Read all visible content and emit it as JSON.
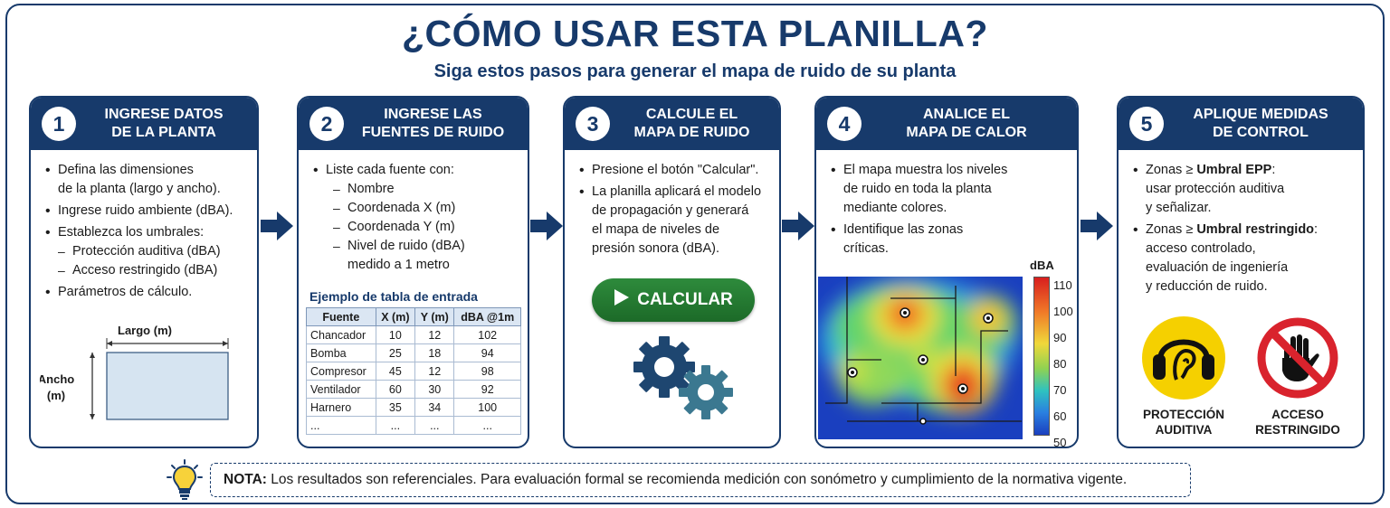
{
  "header": {
    "title": "¿CÓMO USAR ESTA PLANILLA?",
    "subtitle": "Siga estos pasos para generar el mapa de ruido de su planta"
  },
  "steps": [
    {
      "number": "1",
      "title_lines": [
        "INGRESE DATOS",
        "DE LA PLANTA"
      ],
      "bullets": {
        "b1_l1": "Defina las dimensiones",
        "b1_l2": "de la planta (largo y ancho).",
        "b2": "Ingrese ruido ambiente (dBA).",
        "b3": "Establezca los umbrales:",
        "b3_sub1": "Protección auditiva (dBA)",
        "b3_sub2": "Acceso restringido (dBA)",
        "b4": "Parámetros de cálculo."
      },
      "diagram": {
        "largo_label": "Largo (m)",
        "ancho_label_l1": "Ancho",
        "ancho_label_l2": "(m)"
      }
    },
    {
      "number": "2",
      "title_lines": [
        "INGRESE LAS",
        "FUENTES DE RUIDO"
      ],
      "bullets": {
        "b1": "Liste cada fuente con:",
        "sub1": "Nombre",
        "sub2": "Coordenada X (m)",
        "sub3": "Coordenada Y (m)",
        "sub4_l1": "Nivel de ruido (dBA)",
        "sub4_l2": "medido a 1 metro"
      },
      "table": {
        "title": "Ejemplo de tabla de entrada",
        "headers": [
          "Fuente",
          "X (m)",
          "Y (m)",
          "dBA @1m"
        ],
        "rows": [
          [
            "Chancador",
            "10",
            "12",
            "102"
          ],
          [
            "Bomba",
            "25",
            "18",
            "94"
          ],
          [
            "Compresor",
            "45",
            "12",
            "98"
          ],
          [
            "Ventilador",
            "60",
            "30",
            "92"
          ],
          [
            "Harnero",
            "35",
            "34",
            "100"
          ],
          [
            "...",
            "...",
            "...",
            "..."
          ]
        ]
      }
    },
    {
      "number": "3",
      "title_lines": [
        "CALCULE EL",
        "MAPA DE RUIDO"
      ],
      "bullets": {
        "b1": "Presione el botón \"Calcular\".",
        "b2_l1": "La planilla aplicará el modelo",
        "b2_l2": "de propagación y generará",
        "b2_l3": "el mapa de niveles de",
        "b2_l4": "presión sonora (dBA)."
      },
      "button_label": "CALCULAR",
      "icons": {
        "play": "play-icon",
        "gears": "gears-icon"
      }
    },
    {
      "number": "4",
      "title_lines": [
        "ANALICE EL",
        "MAPA DE CALOR"
      ],
      "bullets": {
        "b1_l1": "El mapa muestra los niveles",
        "b1_l2": "de ruido en toda la planta",
        "b1_l3": "mediante colores.",
        "b2_l1": "Identifique las zonas",
        "b2_l2": "críticas."
      },
      "colorbar": {
        "unit": "dBA",
        "ticks": [
          "110",
          "100",
          "90",
          "80",
          "70",
          "60",
          "50"
        ]
      }
    },
    {
      "number": "5",
      "title_lines": [
        "APLIQUE MEDIDAS",
        "DE CONTROL"
      ],
      "bullets": {
        "b1_pre": "Zonas ≥ ",
        "b1_bold": "Umbral EPP",
        "b1_post": ":",
        "b1_l2": "usar protección auditiva",
        "b1_l3": "y señalizar.",
        "b2_pre": "Zonas ≥ ",
        "b2_bold": "Umbral restringido",
        "b2_post": ":",
        "b2_l2": "acceso controlado,",
        "b2_l3": "evaluación de ingeniería",
        "b2_l4": "y reducción de ruido."
      },
      "signs": {
        "ppe_l1": "PROTECCIÓN",
        "ppe_l2": "AUDITIVA",
        "restricted_l1": "ACCESO",
        "restricted_l2": "RESTRINGIDO"
      }
    }
  ],
  "note": {
    "label": "NOTA:",
    "text": " Los resultados son referenciales. Para evaluación formal se recomienda medición con sonómetro y cumplimiento de la normativa vigente."
  },
  "colors": {
    "navy": "#173a6b",
    "button_green": "#2e8b3c",
    "ppe_yellow": "#f5d000",
    "restricted_red": "#d9232d"
  }
}
